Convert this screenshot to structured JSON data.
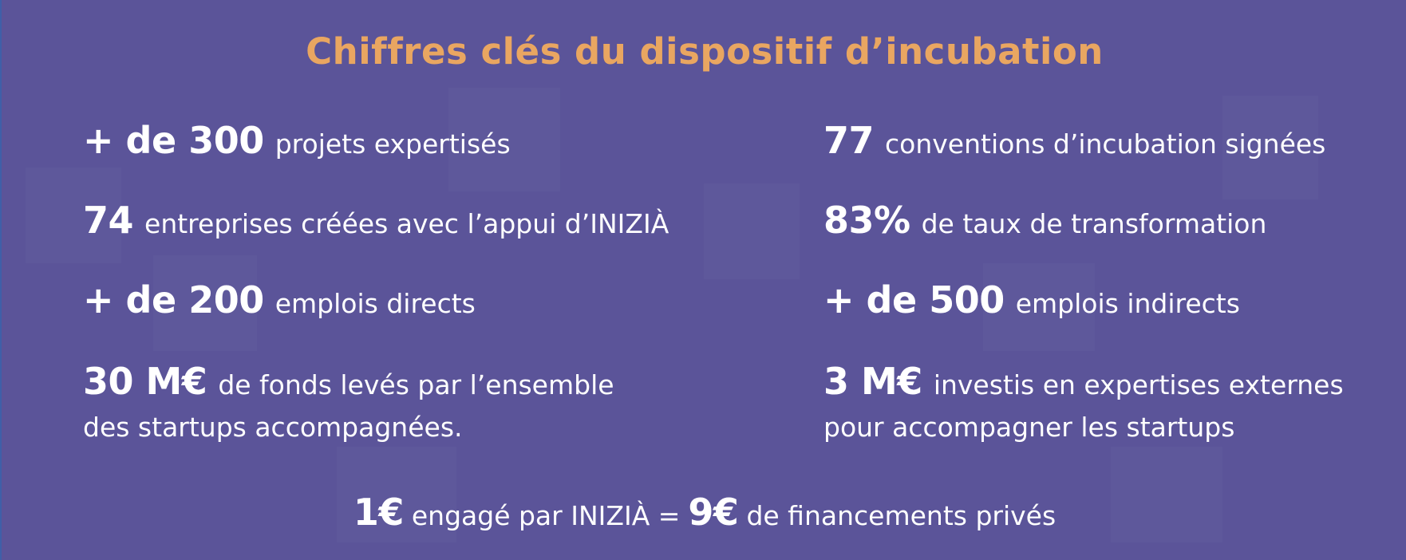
{
  "title": "Chiffres clés du dispositif d’incubation",
  "stats": [
    {
      "value": "+ de 300",
      "text": "projets expertisés"
    },
    {
      "value": "77",
      "text": "conventions d’incubation signées"
    },
    {
      "value": "74",
      "text": "entreprises créées avec l’appui d’INIZIÀ"
    },
    {
      "value": "83%",
      "text": "de taux de transformation"
    },
    {
      "value": "+ de 200",
      "text": "emplois directs"
    },
    {
      "value": "+ de 500",
      "text": "emplois indirects"
    },
    {
      "value": "30 M€",
      "text": "de fonds levés par l’ensemble",
      "text2": "des startups accompagnées."
    },
    {
      "value": "3 M€",
      "text": "investis en expertises externes",
      "text2": "pour accompagner les startups"
    }
  ],
  "bottom": {
    "value1": "1€",
    "text1": "engagé par INIZIÀ =",
    "value2": "9€",
    "text2": "de financements privés"
  },
  "colors": {
    "background": "#5b5499",
    "title": "#e9a661",
    "text": "#ffffff"
  }
}
